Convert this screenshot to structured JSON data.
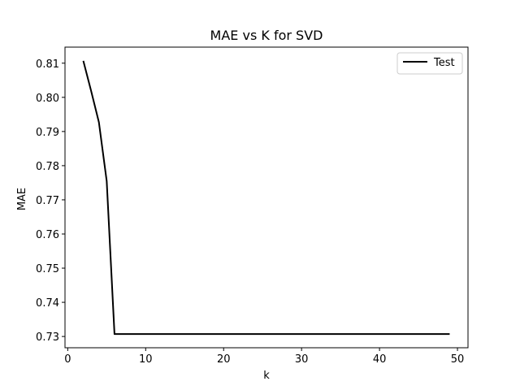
{
  "chart_data": {
    "type": "line",
    "title": "MAE vs K for SVD",
    "xlabel": "k",
    "ylabel": "MAE",
    "xlim": [
      -0.35,
      51.35
    ],
    "ylim": [
      0.7267,
      0.8147
    ],
    "xticks": [
      0,
      10,
      20,
      30,
      40,
      50
    ],
    "yticks": [
      0.73,
      0.74,
      0.75,
      0.76,
      0.77,
      0.78,
      0.79,
      0.8,
      0.81
    ],
    "ytick_labels": [
      "0.73",
      "0.74",
      "0.75",
      "0.76",
      "0.77",
      "0.78",
      "0.79",
      "0.80",
      "0.81"
    ],
    "grid": false,
    "legend_position": "top-right",
    "series": [
      {
        "name": "Test",
        "color": "#000000",
        "x": [
          2,
          3,
          4,
          5,
          6,
          7,
          10,
          15,
          20,
          25,
          30,
          35,
          40,
          45,
          49
        ],
        "y": [
          0.8107,
          0.8019,
          0.7927,
          0.7755,
          0.7307,
          0.7307,
          0.7307,
          0.7307,
          0.7307,
          0.7307,
          0.7307,
          0.7307,
          0.7307,
          0.7307,
          0.7307
        ]
      }
    ]
  }
}
